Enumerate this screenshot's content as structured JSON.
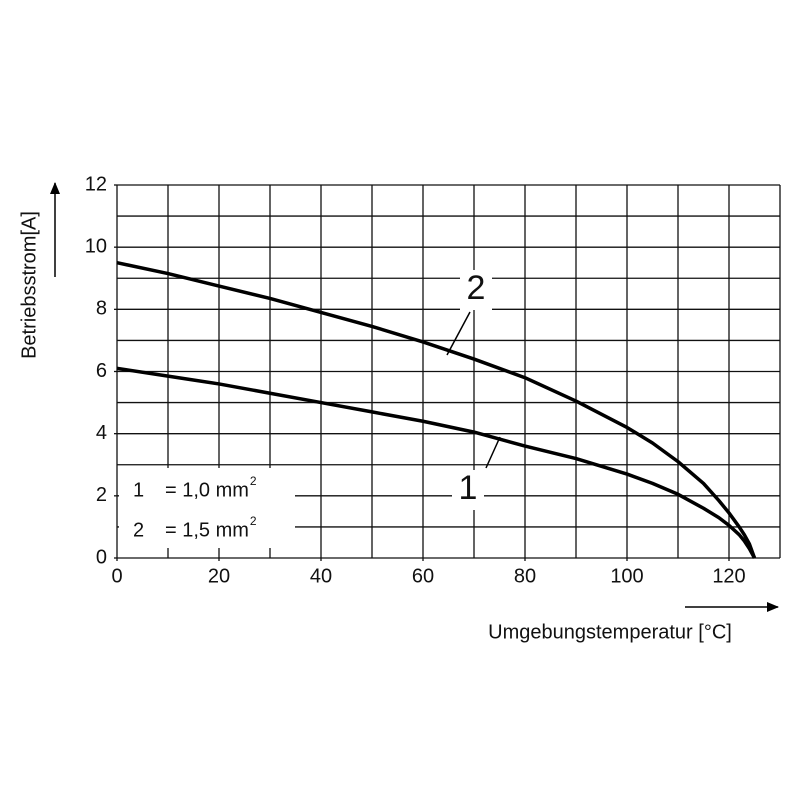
{
  "chart_data": {
    "type": "line",
    "x_label": "Umgebungstemperatur [°C]",
    "y_label": "Betriebsstrom[A]",
    "x": [
      0,
      10,
      20,
      30,
      40,
      50,
      60,
      70,
      80,
      90,
      100,
      105,
      110,
      115,
      118,
      120,
      122,
      123,
      124,
      125
    ],
    "series": [
      {
        "name": "1",
        "color": "#000000",
        "values": [
          6.1,
          5.85,
          5.6,
          5.3,
          5.0,
          4.7,
          4.4,
          4.05,
          3.6,
          3.2,
          2.7,
          2.4,
          2.05,
          1.6,
          1.3,
          1.05,
          0.75,
          0.55,
          0.3,
          0
        ]
      },
      {
        "name": "2",
        "color": "#000000",
        "values": [
          9.5,
          9.15,
          8.75,
          8.35,
          7.9,
          7.45,
          6.95,
          6.4,
          5.8,
          5.05,
          4.2,
          3.7,
          3.1,
          2.4,
          1.85,
          1.45,
          1.0,
          0.75,
          0.45,
          0
        ]
      }
    ],
    "legend": [
      {
        "key": "1",
        "text": "= 1,0 mm",
        "sup": "2"
      },
      {
        "key": "2",
        "text": "= 1,5 mm",
        "sup": "2"
      }
    ],
    "xlim": [
      0,
      130
    ],
    "xticks": [
      0,
      20,
      40,
      60,
      80,
      100,
      120
    ],
    "ylim": [
      0,
      12
    ],
    "yticks": [
      0,
      2,
      4,
      6,
      8,
      10,
      12
    ],
    "grid_x_step": 10,
    "grid_y_step": 1,
    "grid": true
  }
}
